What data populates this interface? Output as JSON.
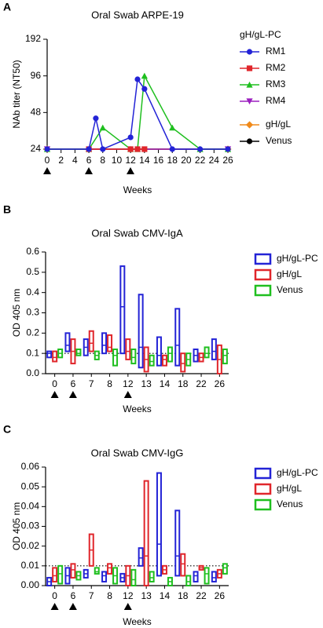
{
  "chart_data": [
    {
      "panel": "A",
      "type": "line",
      "title": "Oral Swab ARPE-19",
      "ylabel": "NAb titer (NT50)",
      "xlabel": "Weeks",
      "log_scale": true,
      "xlim": [
        0,
        26
      ],
      "xticks": [
        0,
        2,
        4,
        6,
        8,
        10,
        12,
        14,
        16,
        18,
        20,
        22,
        24,
        26
      ],
      "ylim": [
        24,
        192
      ],
      "yticks": [
        24,
        48,
        96,
        192
      ],
      "legend_title": "gH/gL-PC",
      "series": [
        {
          "name": "RM1",
          "color": "#2323d6",
          "marker": "circle",
          "x": [
            0,
            6,
            7,
            8,
            12,
            13,
            14,
            18,
            22,
            26
          ],
          "values": [
            24,
            24,
            43,
            24,
            30,
            90,
            75,
            24,
            24,
            24
          ]
        },
        {
          "name": "RM2",
          "color": "#e0262b",
          "marker": "square",
          "x": [
            6,
            12,
            13,
            14
          ],
          "values": [
            24,
            24,
            24,
            24
          ]
        },
        {
          "name": "RM3",
          "color": "#1fbf1f",
          "marker": "triangle-up",
          "x": [
            0,
            6,
            8,
            12,
            13,
            14,
            18,
            22,
            26
          ],
          "values": [
            24,
            24,
            36,
            24,
            24,
            96,
            36,
            24,
            24
          ]
        },
        {
          "name": "RM4",
          "color": "#9b1fbf",
          "marker": "triangle-down",
          "x": [
            0,
            26
          ],
          "values": [
            24,
            24
          ]
        },
        {
          "name": "gH/gL",
          "color": "#f08a1a",
          "marker": "diamond",
          "x": [
            0,
            26
          ],
          "values": [
            24,
            24
          ]
        },
        {
          "name": "Venus",
          "color": "#000000",
          "marker": "circle",
          "x": [
            0,
            26
          ],
          "values": [
            24,
            24
          ]
        }
      ]
    },
    {
      "panel": "B",
      "type": "floating_bar",
      "title": "Oral Swab CMV-IgA",
      "ylabel": "OD 405 nm",
      "xlabel": "Weeks",
      "categories": [
        "0",
        "6",
        "7",
        "8",
        "12",
        "13",
        "14",
        "18",
        "22",
        "26"
      ],
      "ylim": [
        0,
        0.6
      ],
      "yticks": [
        {
          "value": 0,
          "label": "0.0"
        },
        {
          "value": 0.1,
          "label": "0.1"
        },
        {
          "value": 0.2,
          "label": "0.2"
        },
        {
          "value": 0.3,
          "label": "0.3"
        },
        {
          "value": 0.4,
          "label": "0.4"
        },
        {
          "value": 0.5,
          "label": "0.5"
        },
        {
          "value": 0.6,
          "label": "0.6"
        }
      ],
      "refline": 0.1,
      "series": [
        {
          "name": "gH/gL-PC",
          "color": "#2323d6",
          "min": [
            0.08,
            0.11,
            0.09,
            0.1,
            0.1,
            0.03,
            0.04,
            0.04,
            0.06,
            0.07
          ],
          "max": [
            0.11,
            0.2,
            0.17,
            0.2,
            0.53,
            0.39,
            0.18,
            0.32,
            0.12,
            0.17
          ],
          "median": [
            0.1,
            0.14,
            0.13,
            0.14,
            0.33,
            0.13,
            0.09,
            0.14,
            0.09,
            0.11
          ]
        },
        {
          "name": "gH/gL",
          "color": "#e0262b",
          "min": [
            0.06,
            0.05,
            0.11,
            0.11,
            0.07,
            0.01,
            0.04,
            0.01,
            0.06,
            0
          ],
          "max": [
            0.11,
            0.17,
            0.21,
            0.19,
            0.17,
            0.13,
            0.09,
            0.1,
            0.1,
            0.14
          ],
          "median": [
            0.08,
            0.11,
            0.15,
            0.13,
            0.11,
            0.07,
            0.07,
            0.05,
            0.08,
            0.07
          ]
        },
        {
          "name": "Venus",
          "color": "#1fbf1f",
          "min": [
            0.08,
            0.09,
            0.07,
            0.04,
            0.05,
            0.04,
            0.06,
            0.04,
            0.08,
            0.05
          ],
          "max": [
            0.12,
            0.12,
            0.11,
            0.12,
            0.12,
            0.09,
            0.13,
            0.1,
            0.13,
            0.12
          ],
          "median": [
            0.1,
            0.1,
            0.09,
            0.09,
            0.08,
            0.06,
            0.1,
            0.07,
            0.1,
            0.09
          ]
        }
      ]
    },
    {
      "panel": "C",
      "type": "floating_bar",
      "title": "Oral Swab CMV-IgG",
      "ylabel": "OD 405 nm",
      "xlabel": "Weeks",
      "categories": [
        "0",
        "6",
        "7",
        "8",
        "12",
        "13",
        "14",
        "18",
        "22",
        "26"
      ],
      "ylim": [
        0,
        0.06
      ],
      "yticks": [
        {
          "value": 0,
          "label": "0.00"
        },
        {
          "value": 0.01,
          "label": "0.01"
        },
        {
          "value": 0.02,
          "label": "0.02"
        },
        {
          "value": 0.03,
          "label": "0.03"
        },
        {
          "value": 0.04,
          "label": "0.04"
        },
        {
          "value": 0.05,
          "label": "0.05"
        },
        {
          "value": 0.06,
          "label": "0.06"
        }
      ],
      "refline": 0.01,
      "series": [
        {
          "name": "gH/gL-PC",
          "color": "#2323d6",
          "min": [
            0,
            0.001,
            0.004,
            0.002,
            0.002,
            0.01,
            0.005,
            0.005,
            0.002,
            0.002
          ],
          "max": [
            0.004,
            0.009,
            0.008,
            0.007,
            0.006,
            0.019,
            0.057,
            0.038,
            0.007,
            0.007
          ],
          "median": [
            0.002,
            0.005,
            0.006,
            0.005,
            0.004,
            0.014,
            0.021,
            0.015,
            0.005,
            0.004
          ]
        },
        {
          "name": "gH/gL",
          "color": "#e0262b",
          "min": [
            0.002,
            0.004,
            0.01,
            0.006,
            0,
            0,
            0.006,
            0.005,
            0.008,
            0.004
          ],
          "max": [
            0.009,
            0.011,
            0.026,
            0.011,
            0.01,
            0.053,
            0.01,
            0.016,
            0.01,
            0.008
          ],
          "median": [
            0.005,
            0.008,
            0.018,
            0.009,
            0.005,
            0.015,
            0.008,
            0.011,
            0.009,
            0.006
          ]
        },
        {
          "name": "Venus",
          "color": "#1fbf1f",
          "min": [
            0.001,
            0.003,
            0.006,
            0.001,
            0,
            0.002,
            0,
            0,
            0.001,
            0.006
          ],
          "max": [
            0.01,
            0.007,
            0.009,
            0.009,
            0.008,
            0.007,
            0.004,
            0.005,
            0.009,
            0.011
          ],
          "median": [
            0.006,
            0.005,
            0.007,
            0.005,
            0.003,
            0.004,
            0.002,
            0.002,
            0.006,
            0.009
          ]
        }
      ]
    }
  ]
}
